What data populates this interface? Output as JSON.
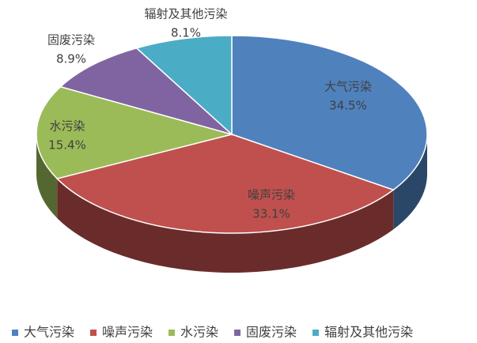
{
  "chart_data": {
    "type": "pie3d",
    "categories": [
      "大气污染",
      "噪声污染",
      "水污染",
      "固废污染",
      "辐射及其他污染"
    ],
    "values": [
      34.5,
      33.1,
      15.4,
      8.9,
      8.1
    ],
    "value_labels": [
      "34.5%",
      "33.1%",
      "15.4%",
      "8.9%",
      "8.1%"
    ],
    "colors": [
      "#4f81bd",
      "#c0504d",
      "#9bbb59",
      "#8064a2",
      "#4bacc6"
    ],
    "legend": "bottom"
  }
}
